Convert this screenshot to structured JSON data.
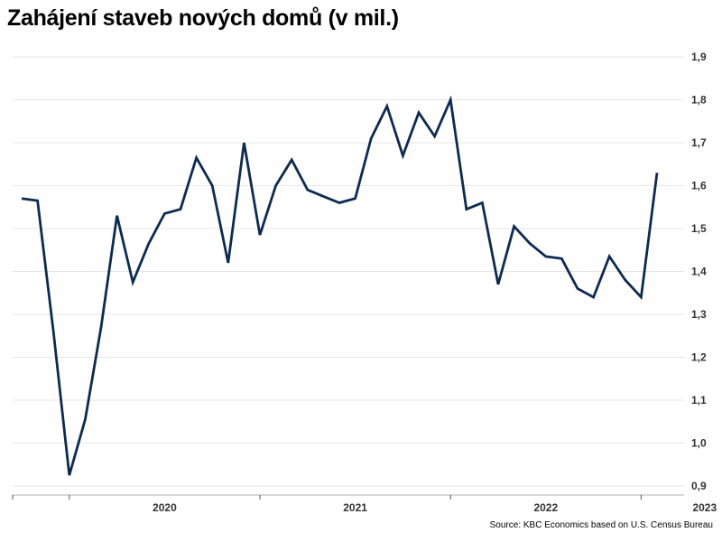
{
  "chart_data": {
    "type": "line",
    "title": "Zahájení staveb nových domů (v mil.)",
    "source": "Source: KBC Economics based on U.S. Census Bureau",
    "xlabel": "",
    "ylabel": "",
    "ylim": [
      0.9,
      1.9
    ],
    "y_ticks": [
      "1,9",
      "1,8",
      "1,7",
      "1,6",
      "1,5",
      "1,4",
      "1,3",
      "1,2",
      "1,1",
      "1,0",
      "0,9"
    ],
    "y_tick_values": [
      1.9,
      1.8,
      1.7,
      1.6,
      1.5,
      1.4,
      1.3,
      1.2,
      1.1,
      1.0,
      0.9
    ],
    "x_labels": [
      {
        "label": "2020",
        "date": "2020-07"
      },
      {
        "label": "2021",
        "date": "2021-07"
      },
      {
        "label": "2022",
        "date": "2022-07"
      },
      {
        "label": "2023",
        "date": "2023-05"
      }
    ],
    "x_ticks": [
      "2020-01",
      "2021-01",
      "2022-01",
      "2023-01"
    ],
    "grid": true,
    "line_color": "#0d2a52",
    "series": [
      {
        "x": [
          "2019-10",
          "2019-11",
          "2019-12",
          "2020-01",
          "2020-02",
          "2020-03",
          "2020-04",
          "2020-05",
          "2020-06",
          "2020-07",
          "2020-08",
          "2020-09",
          "2020-10",
          "2020-11",
          "2020-12",
          "2021-01",
          "2021-02",
          "2021-03",
          "2021-04",
          "2021-05",
          "2021-06",
          "2021-07",
          "2021-08",
          "2021-09",
          "2021-10",
          "2021-11",
          "2021-12",
          "2022-01",
          "2022-02",
          "2022-03",
          "2022-04",
          "2022-05",
          "2022-06",
          "2022-07",
          "2022-08",
          "2022-09",
          "2022-10",
          "2022-11",
          "2022-12",
          "2023-01",
          "2023-02",
          "2023-03",
          "2023-04",
          "2023-05",
          "2023-06"
        ],
        "values": [
          1.57,
          1.565,
          1.26,
          0.925,
          1.055,
          1.27,
          1.53,
          1.375,
          1.465,
          1.535,
          1.545,
          1.665,
          1.6,
          1.42,
          1.7,
          1.485,
          1.6,
          1.66,
          1.59,
          1.575,
          1.56,
          1.57,
          1.71,
          1.785,
          1.67,
          1.77,
          1.715,
          1.8,
          1.545,
          1.56,
          1.37,
          1.505,
          1.465,
          1.435,
          1.43,
          1.36,
          1.34,
          1.435,
          1.38,
          1.34,
          1.63,
          null,
          null,
          null,
          null
        ]
      }
    ]
  }
}
